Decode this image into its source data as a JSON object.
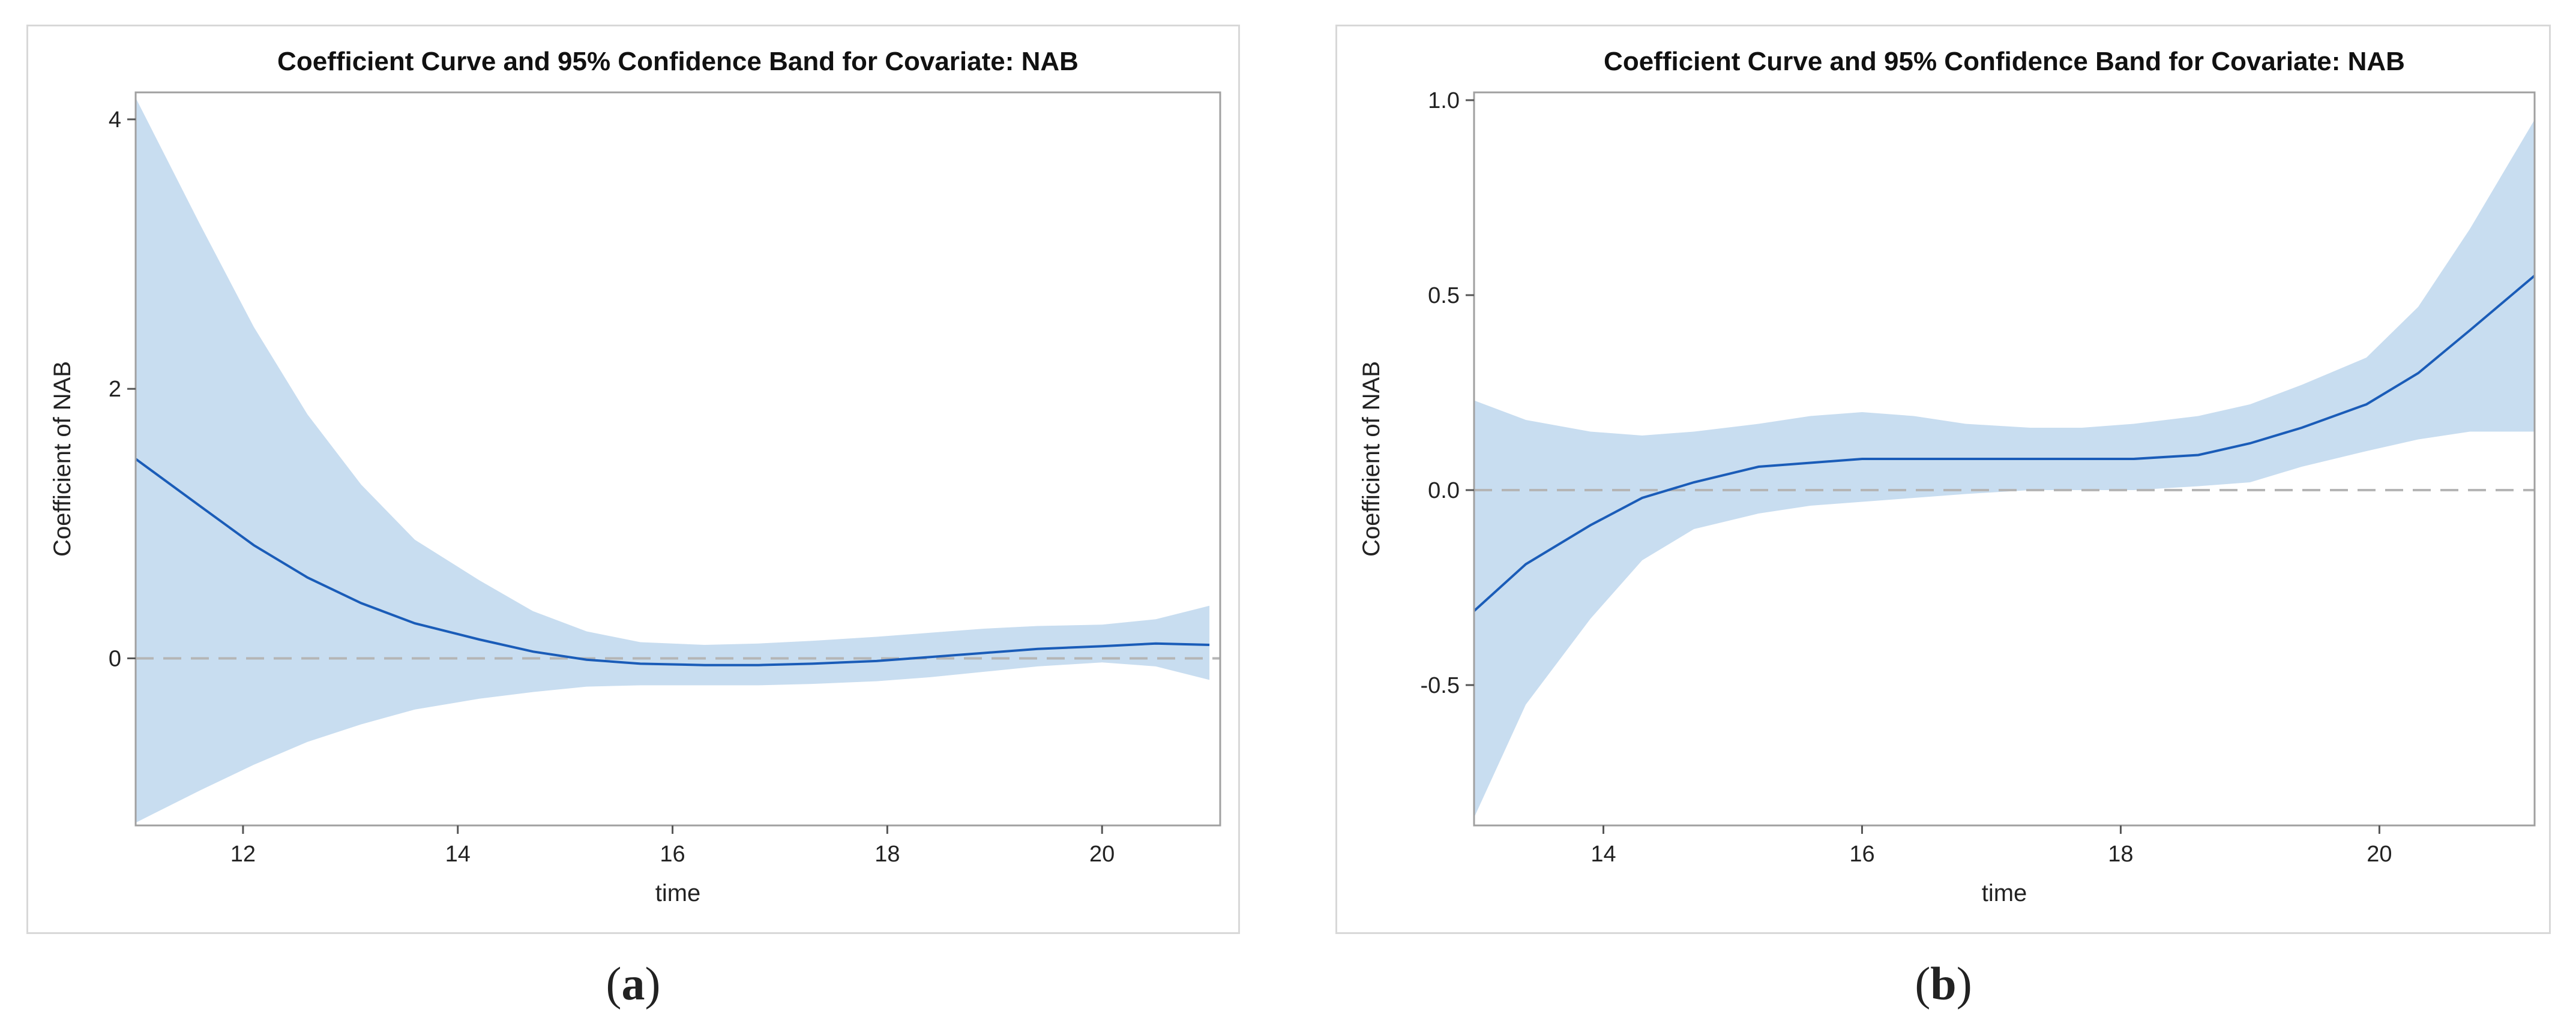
{
  "chart_data": [
    {
      "type": "line",
      "id": "a",
      "title": "Coefficient Curve and 95% Confidence Band for Covariate: NAB",
      "xlabel": "time",
      "ylabel": "Coefficient of NAB",
      "xlim": [
        11.0,
        21.1
      ],
      "ylim": [
        -1.24,
        4.2
      ],
      "xticks": [
        12,
        14,
        16,
        18,
        20
      ],
      "xtick_labels": [
        "12",
        "14",
        "16",
        "18",
        "20"
      ],
      "yticks": [
        0,
        2,
        4
      ],
      "ytick_labels": [
        "0",
        "2",
        "4"
      ],
      "reference_line": 0,
      "series": [
        {
          "name": "Coefficient",
          "x": [
            11.0,
            11.6,
            12.1,
            12.6,
            13.1,
            13.6,
            14.2,
            14.7,
            15.2,
            15.7,
            16.3,
            16.8,
            17.3,
            17.9,
            18.4,
            18.9,
            19.4,
            20.0,
            20.5,
            21.0
          ],
          "y": [
            1.48,
            1.13,
            0.84,
            0.6,
            0.41,
            0.26,
            0.14,
            0.05,
            -0.01,
            -0.04,
            -0.05,
            -0.05,
            -0.04,
            -0.02,
            0.01,
            0.04,
            0.07,
            0.09,
            0.11,
            0.1
          ],
          "lower": [
            -1.22,
            -0.98,
            -0.79,
            -0.62,
            -0.49,
            -0.38,
            -0.3,
            -0.25,
            -0.21,
            -0.2,
            -0.2,
            -0.2,
            -0.19,
            -0.17,
            -0.14,
            -0.1,
            -0.06,
            -0.03,
            -0.06,
            -0.16
          ],
          "upper": [
            4.16,
            3.22,
            2.46,
            1.81,
            1.29,
            0.88,
            0.58,
            0.35,
            0.2,
            0.12,
            0.1,
            0.11,
            0.13,
            0.16,
            0.19,
            0.22,
            0.24,
            0.25,
            0.29,
            0.39
          ]
        }
      ]
    },
    {
      "type": "line",
      "id": "b",
      "title": "Coefficient Curve and 95% Confidence Band for Covariate: NAB",
      "xlabel": "time",
      "ylabel": "Coefficient of NAB",
      "xlim": [
        13.0,
        21.2
      ],
      "ylim": [
        -0.86,
        1.02
      ],
      "xticks": [
        14,
        16,
        18,
        20
      ],
      "xtick_labels": [
        "14",
        "16",
        "18",
        "20"
      ],
      "yticks": [
        -0.5,
        0.0,
        0.5,
        1.0
      ],
      "ytick_labels": [
        "-0.5",
        "0.0",
        "0.5",
        "1.0"
      ],
      "reference_line": 0,
      "series": [
        {
          "name": "Coefficient",
          "x": [
            13.0,
            13.4,
            13.9,
            14.3,
            14.7,
            15.2,
            15.6,
            16.0,
            16.4,
            16.8,
            17.3,
            17.7,
            18.1,
            18.6,
            19.0,
            19.4,
            19.9,
            20.3,
            20.7,
            21.2
          ],
          "y": [
            -0.31,
            -0.19,
            -0.09,
            -0.02,
            0.02,
            0.06,
            0.07,
            0.08,
            0.08,
            0.08,
            0.08,
            0.08,
            0.08,
            0.09,
            0.12,
            0.16,
            0.22,
            0.3,
            0.41,
            0.55
          ],
          "lower": [
            -0.84,
            -0.55,
            -0.33,
            -0.18,
            -0.1,
            -0.06,
            -0.04,
            -0.03,
            -0.02,
            -0.01,
            0.0,
            0.0,
            0.0,
            0.01,
            0.02,
            0.06,
            0.1,
            0.13,
            0.15,
            0.15
          ],
          "upper": [
            0.23,
            0.18,
            0.15,
            0.14,
            0.15,
            0.17,
            0.19,
            0.2,
            0.19,
            0.17,
            0.16,
            0.16,
            0.17,
            0.19,
            0.22,
            0.27,
            0.34,
            0.47,
            0.67,
            0.95
          ]
        }
      ]
    }
  ],
  "captions": {
    "a": "a",
    "b": "b"
  },
  "colors": {
    "band": "#c8ddf0",
    "line": "#1a5cb8",
    "reference": "#b5b5b5",
    "frame": "#a0a0a0"
  }
}
